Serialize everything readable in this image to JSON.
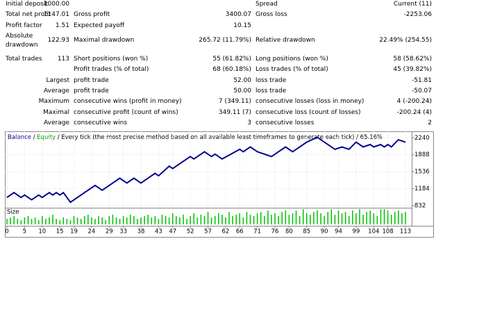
{
  "report": {
    "rows": [
      {
        "label1": "Initial deposit",
        "value1": "1000.00",
        "label3": "Spread",
        "value3": "Current (11)"
      },
      {
        "label1": "Total net profit",
        "value1": "1147.01",
        "label2": "Gross profit",
        "value2": "3400.07",
        "label3": "Gross loss",
        "value3": "-2253.06"
      },
      {
        "label1": "Profit factor",
        "value1": "1.51",
        "label2": "Expected payoff",
        "value2": "10.15"
      },
      {
        "label1": "Absolute drawdown",
        "value1": "122.93",
        "label2": "Maximal drawdown",
        "value2": "265.72 (11.79%)",
        "label3": "Relative drawdown",
        "value3": "22.49% (254.55)"
      },
      {
        "label1": "Total trades",
        "value1": "113",
        "label2": "Short positions (won %)",
        "value2": "55 (61.82%)",
        "label3": "Long positions (won %)",
        "value3": "58 (58.62%)"
      },
      {
        "label2": "Profit trades (% of total)",
        "value2": "68 (60.18%)",
        "label3": "Loss trades (% of total)",
        "value3": "45 (39.82%)"
      },
      {
        "group": "Largest",
        "label2": "profit trade",
        "value2": "52.00",
        "label3": "loss trade",
        "value3": "-51.81"
      },
      {
        "group": "Average",
        "label2": "profit trade",
        "value2": "50.00",
        "label3": "loss trade",
        "value3": "-50.07"
      },
      {
        "group": "Maximum",
        "label2": "consecutive wins (profit in money)",
        "value2": "7 (349.11)",
        "label3": "consecutive losses (loss in money)",
        "value3": "4 (-200.24)"
      },
      {
        "group": "Maximal",
        "label2": "consecutive profit (count of wins)",
        "value2": "349.11 (7)",
        "label3": "consecutive loss (count of losses)",
        "value3": "-200.24 (4)"
      },
      {
        "group": "Average",
        "label2": "consecutive wins",
        "value2": "3",
        "label3": "consecutive losses",
        "value3": "2"
      }
    ]
  },
  "chart_data": {
    "type": "line",
    "separator": "/",
    "subtitle": "Every tick (the most precise method based on all available least timeframes to generate each tick)",
    "quality": "65.16%",
    "equity_label": "Equity",
    "equity_color": "#00a000",
    "series": [
      {
        "name": "Balance",
        "color": "#00008b",
        "x": [
          0,
          2,
          4,
          5,
          7,
          9,
          10,
          12,
          13,
          14,
          15,
          16,
          18,
          25,
          27,
          32,
          34,
          36,
          38,
          42,
          43,
          46,
          47,
          52,
          53,
          56,
          58,
          59,
          61,
          66,
          67,
          69,
          71,
          75,
          79,
          81,
          85,
          88,
          93,
          95,
          97,
          99,
          101,
          103,
          104,
          106,
          107,
          108,
          109,
          111,
          113
        ],
        "values": [
          1000,
          1100,
          1000,
          1050,
          950,
          1050,
          1000,
          1100,
          1050,
          1100,
          1050,
          1100,
          900,
          1250,
          1150,
          1400,
          1300,
          1400,
          1300,
          1500,
          1450,
          1650,
          1600,
          1850,
          1800,
          1950,
          1850,
          1900,
          1800,
          2000,
          1950,
          2050,
          1950,
          1850,
          2050,
          1950,
          2150,
          2250,
          2000,
          2050,
          2000,
          2150,
          2050,
          2100,
          2050,
          2100,
          2050,
          2100,
          2050,
          2200,
          2147
        ]
      }
    ],
    "xlim": [
      0,
      113
    ],
    "xticks": [
      0,
      5,
      10,
      15,
      19,
      24,
      29,
      33,
      38,
      43,
      47,
      52,
      57,
      62,
      66,
      71,
      76,
      80,
      85,
      90,
      94,
      99,
      104,
      108,
      113
    ],
    "ylim": [
      800,
      2360
    ],
    "yticks": [
      832,
      1184,
      1536,
      1888,
      2240
    ],
    "grid": true,
    "size_label": "Size",
    "size_color": "#00c000",
    "size_values": [
      4,
      5,
      6,
      4,
      3,
      5,
      6,
      4,
      5,
      3,
      6,
      4,
      5,
      7,
      4,
      3,
      5,
      4,
      3,
      6,
      5,
      4,
      6,
      7,
      5,
      4,
      6,
      5,
      3,
      6,
      7,
      5,
      4,
      6,
      5,
      7,
      6,
      4,
      5,
      6,
      7,
      5,
      6,
      4,
      7,
      6,
      5,
      8,
      6,
      5,
      7,
      4,
      6,
      8,
      5,
      7,
      6,
      9,
      5,
      6,
      8,
      7,
      5,
      9,
      6,
      7,
      8,
      5,
      9,
      7,
      6,
      8,
      9,
      6,
      10,
      7,
      8,
      6,
      9,
      10,
      7,
      8,
      10,
      6,
      11,
      8,
      7,
      9,
      10,
      8,
      6,
      9,
      11,
      7,
      10,
      8,
      9,
      6,
      10,
      8,
      11,
      7,
      9,
      10,
      8,
      6,
      11,
      11,
      10,
      7,
      9,
      10,
      8,
      9
    ]
  }
}
